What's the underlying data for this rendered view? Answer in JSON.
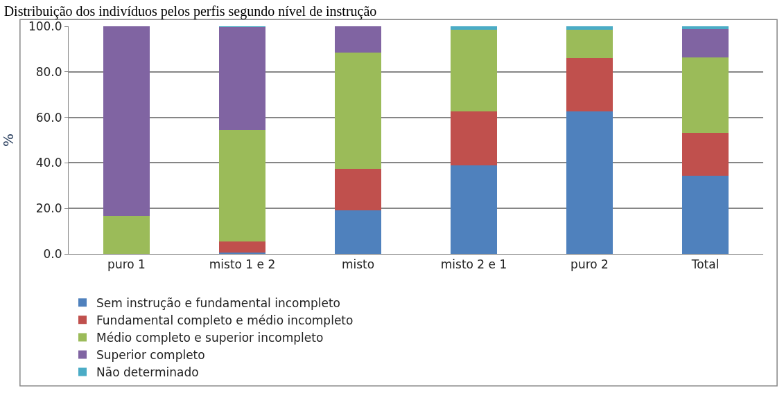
{
  "chart_data": {
    "type": "bar",
    "title": "Distribuição dos indivíduos pelos perfis segundo nível de instrução",
    "ylabel": "%",
    "categories": [
      "puro 1",
      "misto 1 e 2",
      "misto",
      "misto 2 e 1",
      "puro 2",
      "Total"
    ],
    "stacked": true,
    "series": [
      {
        "name": "Sem instrução e fundamental incompleto",
        "color": "#4f81bd",
        "values": [
          0,
          0.5,
          19.3,
          38.8,
          62.5,
          34.5
        ]
      },
      {
        "name": "Fundamental completo e médio incompleto",
        "color": "#c0504d",
        "values": [
          0,
          5.0,
          18.2,
          23.9,
          23.5,
          18.7
        ]
      },
      {
        "name": "Médio completo e superior incompleto",
        "color": "#9bbb59",
        "values": [
          16.7,
          49.0,
          50.9,
          35.9,
          12.6,
          33.0
        ]
      },
      {
        "name": "Superior completo",
        "color": "#8064a2",
        "values": [
          83.3,
          45.2,
          11.6,
          0,
          0,
          12.6
        ]
      },
      {
        "name": "Não determinado",
        "color": "#4bacc6",
        "values": [
          0,
          0.3,
          0,
          1.4,
          1.4,
          1.2
        ]
      }
    ],
    "ylim": [
      0,
      100
    ],
    "yticks": [
      {
        "value": 0,
        "label": "0.0"
      },
      {
        "value": 20,
        "label": "20.0"
      },
      {
        "value": 40,
        "label": "40.0"
      },
      {
        "value": 60,
        "label": "60.0"
      },
      {
        "value": 80,
        "label": "80.0"
      },
      {
        "value": 100,
        "label": "100.0"
      }
    ],
    "grid": "y",
    "legend": "bottom"
  }
}
